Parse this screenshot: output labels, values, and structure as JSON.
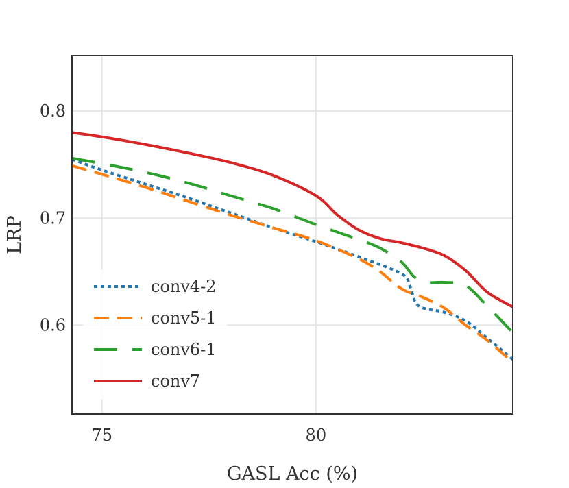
{
  "chart_data": {
    "type": "line",
    "title": "",
    "xlabel": "GASL Acc (%)",
    "ylabel": "LRP",
    "xlim": [
      74.3,
      84.6
    ],
    "ylim": [
      0.517,
      0.852
    ],
    "xticks": [
      75,
      80
    ],
    "xtick_labels": [
      "75",
      "80"
    ],
    "yticks": [
      0.6,
      0.7,
      0.8
    ],
    "ytick_labels": [
      "0.6",
      "0.7",
      "0.8"
    ],
    "grid": true,
    "legend_position": "lower-left",
    "series": [
      {
        "name": "conv4-2",
        "color": "#1f77b4",
        "style": "dotted",
        "x": [
          74.3,
          75.0,
          76.0,
          77.0,
          78.0,
          79.0,
          80.0,
          81.0,
          82.0,
          82.2,
          82.4,
          83.0,
          83.5,
          84.0,
          84.6
        ],
        "y": [
          0.755,
          0.745,
          0.732,
          0.719,
          0.705,
          0.691,
          0.678,
          0.664,
          0.648,
          0.636,
          0.618,
          0.612,
          0.604,
          0.588,
          0.568
        ]
      },
      {
        "name": "conv5-1",
        "color": "#ff7f0e",
        "style": "dashed",
        "x": [
          74.3,
          75.0,
          76.0,
          77.0,
          78.0,
          79.0,
          80.0,
          81.0,
          81.5,
          82.0,
          82.5,
          83.0,
          83.5,
          84.0,
          84.6
        ],
        "y": [
          0.749,
          0.741,
          0.729,
          0.716,
          0.703,
          0.691,
          0.679,
          0.662,
          0.65,
          0.634,
          0.626,
          0.616,
          0.6,
          0.586,
          0.565
        ]
      },
      {
        "name": "conv6-1",
        "color": "#2ca02c",
        "style": "long-dashed",
        "x": [
          74.3,
          75.0,
          76.0,
          77.0,
          78.0,
          79.0,
          80.0,
          81.0,
          81.5,
          82.0,
          82.3,
          82.6,
          83.0,
          83.5,
          84.0,
          84.6
        ],
        "y": [
          0.756,
          0.751,
          0.743,
          0.733,
          0.721,
          0.709,
          0.694,
          0.68,
          0.672,
          0.659,
          0.645,
          0.64,
          0.64,
          0.637,
          0.618,
          0.593
        ]
      },
      {
        "name": "conv7",
        "color": "#d62728",
        "style": "solid",
        "x": [
          74.3,
          75.0,
          76.0,
          77.0,
          78.0,
          79.0,
          80.0,
          80.5,
          81.0,
          81.5,
          82.0,
          82.5,
          83.0,
          83.5,
          84.0,
          84.6
        ],
        "y": [
          0.78,
          0.776,
          0.769,
          0.761,
          0.752,
          0.74,
          0.721,
          0.703,
          0.689,
          0.681,
          0.677,
          0.672,
          0.665,
          0.651,
          0.631,
          0.617
        ]
      }
    ]
  }
}
